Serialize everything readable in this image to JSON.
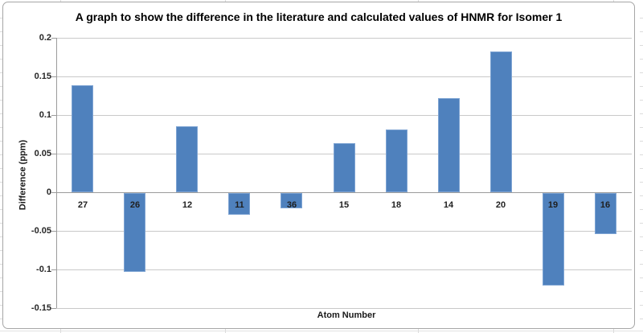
{
  "chart_data": {
    "type": "bar",
    "title": "A graph to show the difference in the literature and calculated values of HNMR for Isomer 1",
    "xlabel": "Atom Number",
    "ylabel": "Difference (ppm)",
    "categories": [
      "27",
      "26",
      "12",
      "11",
      "36",
      "15",
      "18",
      "14",
      "20",
      "19",
      "16"
    ],
    "values": [
      0.139,
      -0.102,
      0.085,
      -0.028,
      -0.02,
      0.064,
      0.081,
      0.122,
      0.182,
      -0.12,
      -0.053
    ],
    "ylim": [
      -0.15,
      0.2
    ],
    "ytick_step": 0.05,
    "yticks": [
      {
        "value": 0.2,
        "label": "0.2"
      },
      {
        "value": 0.15,
        "label": "0.15"
      },
      {
        "value": 0.1,
        "label": "0.1"
      },
      {
        "value": 0.05,
        "label": "0.05"
      },
      {
        "value": 0,
        "label": "0"
      },
      {
        "value": -0.05,
        "label": "-0.05"
      },
      {
        "value": -0.1,
        "label": "-0.1"
      },
      {
        "value": -0.15,
        "label": "-0.15"
      }
    ],
    "grid": true,
    "legend": null,
    "colors": {
      "bar_fill": "#4f81bd",
      "bar_edge": "#7ea4d3",
      "gridline": "#c9c9c9",
      "axis_line": "#9b9b9b",
      "text": "#1a1a1a",
      "frame_border": "#a6a6a6",
      "sheet_gridline": "#dcdcdc"
    }
  }
}
